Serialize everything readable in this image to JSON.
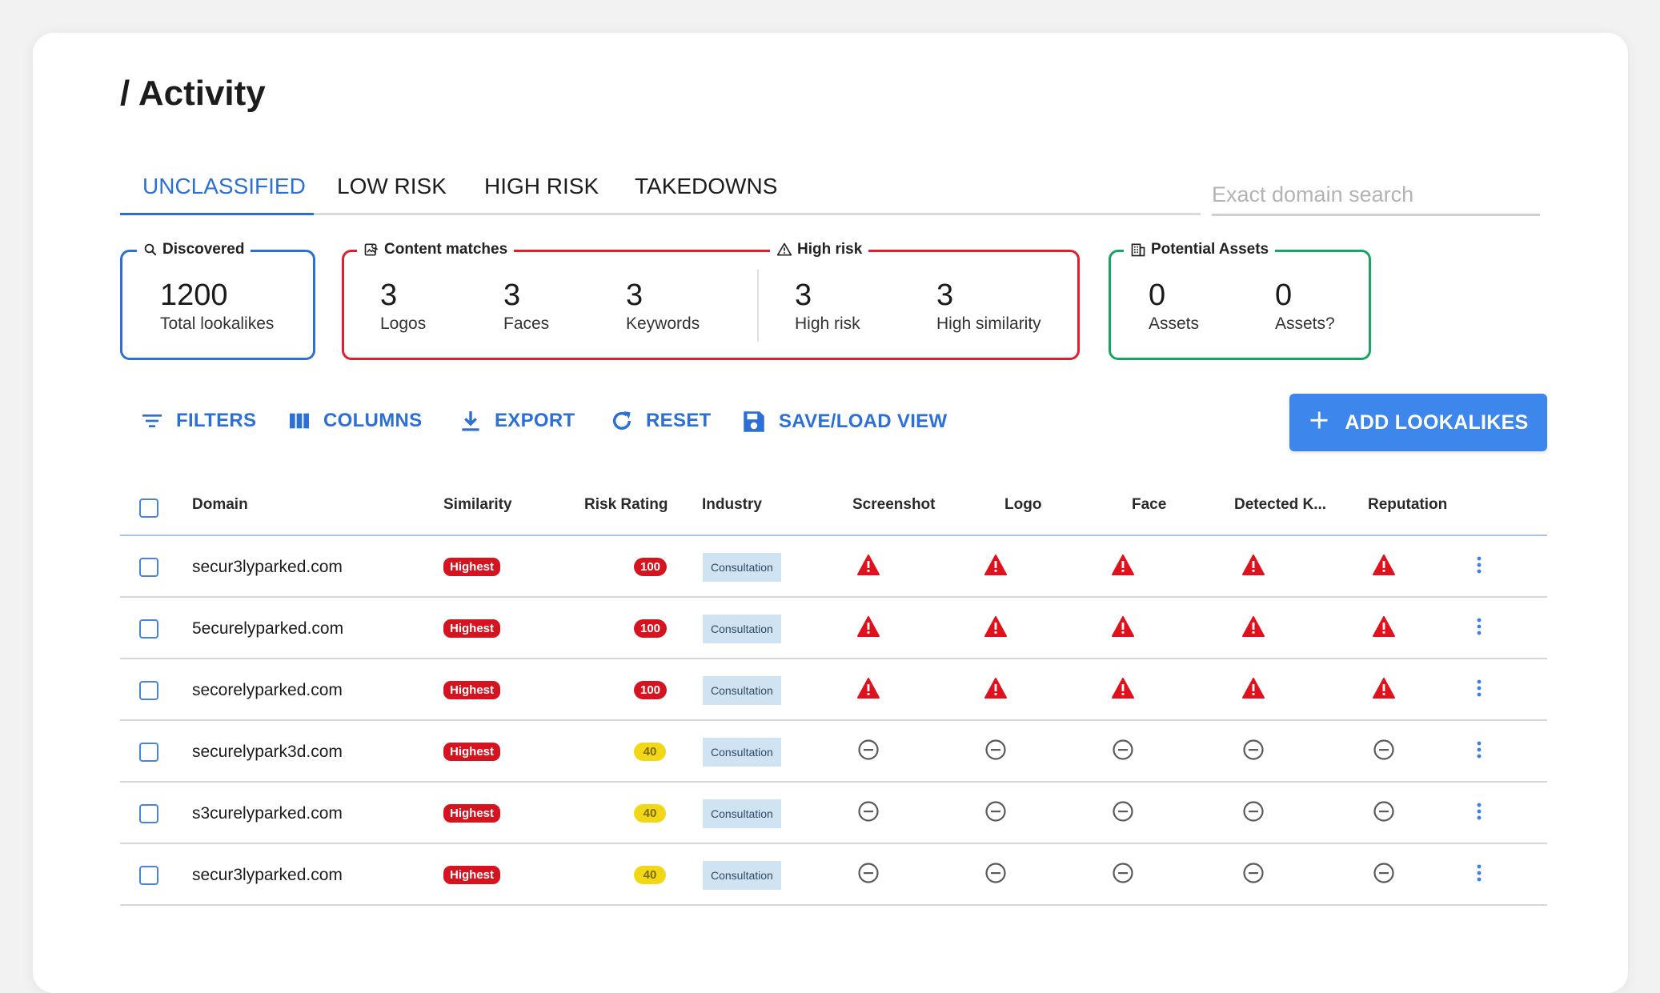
{
  "page": {
    "title": "/ Activity"
  },
  "tabs": [
    {
      "label": "UNCLASSIFIED",
      "active": true
    },
    {
      "label": "LOW RISK",
      "active": false
    },
    {
      "label": "HIGH RISK",
      "active": false
    },
    {
      "label": "TAKEDOWNS",
      "active": false
    }
  ],
  "search": {
    "placeholder": "Exact domain search",
    "value": ""
  },
  "stats": {
    "discovered": {
      "title": "Discovered",
      "icon": "search-icon",
      "value": "1200",
      "label": "Total lookalikes"
    },
    "content_matches": {
      "title": "Content matches",
      "icon": "image-search-icon",
      "items": [
        {
          "value": "3",
          "label": "Logos"
        },
        {
          "value": "3",
          "label": "Faces"
        },
        {
          "value": "3",
          "label": "Keywords"
        }
      ]
    },
    "high_risk": {
      "title": "High risk",
      "icon": "warning-outline-icon",
      "items": [
        {
          "value": "3",
          "label": "High risk"
        },
        {
          "value": "3",
          "label": "High similarity"
        }
      ]
    },
    "potential_assets": {
      "title": "Potential Assets",
      "icon": "building-icon",
      "items": [
        {
          "value": "0",
          "label": "Assets"
        },
        {
          "value": "0",
          "label": "Assets?"
        }
      ]
    }
  },
  "toolbar": {
    "filters": "FILTERS",
    "columns": "COLUMNS",
    "export": "EXPORT",
    "reset": "RESET",
    "save_load": "SAVE/LOAD VIEW",
    "add": "ADD LOOKALIKES"
  },
  "table": {
    "columns": [
      "Domain",
      "Similarity",
      "Risk Rating",
      "Industry",
      "Screenshot",
      "Logo",
      "Face",
      "Detected K...",
      "Reputation"
    ],
    "rows": [
      {
        "domain": "secur3lyparked.com",
        "similarity": "Highest",
        "risk": "100",
        "risk_level": "high",
        "industry": "Consultation",
        "status": "alert"
      },
      {
        "domain": "5ecurelyparked.com",
        "similarity": "Highest",
        "risk": "100",
        "risk_level": "high",
        "industry": "Consultation",
        "status": "alert"
      },
      {
        "domain": "secorelyparked.com",
        "similarity": "Highest",
        "risk": "100",
        "risk_level": "high",
        "industry": "Consultation",
        "status": "alert"
      },
      {
        "domain": "securelypark3d.com",
        "similarity": "Highest",
        "risk": "40",
        "risk_level": "medium",
        "industry": "Consultation",
        "status": "none"
      },
      {
        "domain": "s3curelyparked.com",
        "similarity": "Highest",
        "risk": "40",
        "risk_level": "medium",
        "industry": "Consultation",
        "status": "none"
      },
      {
        "domain": "secur3lyparked.com",
        "similarity": "Highest",
        "risk": "40",
        "risk_level": "medium",
        "industry": "Consultation",
        "status": "none"
      }
    ]
  },
  "colors": {
    "accent": "#2c6fd6",
    "danger": "#d6141f",
    "warning": "#f2d717",
    "success": "#16a563",
    "industry_bg": "#cfe3f3"
  }
}
